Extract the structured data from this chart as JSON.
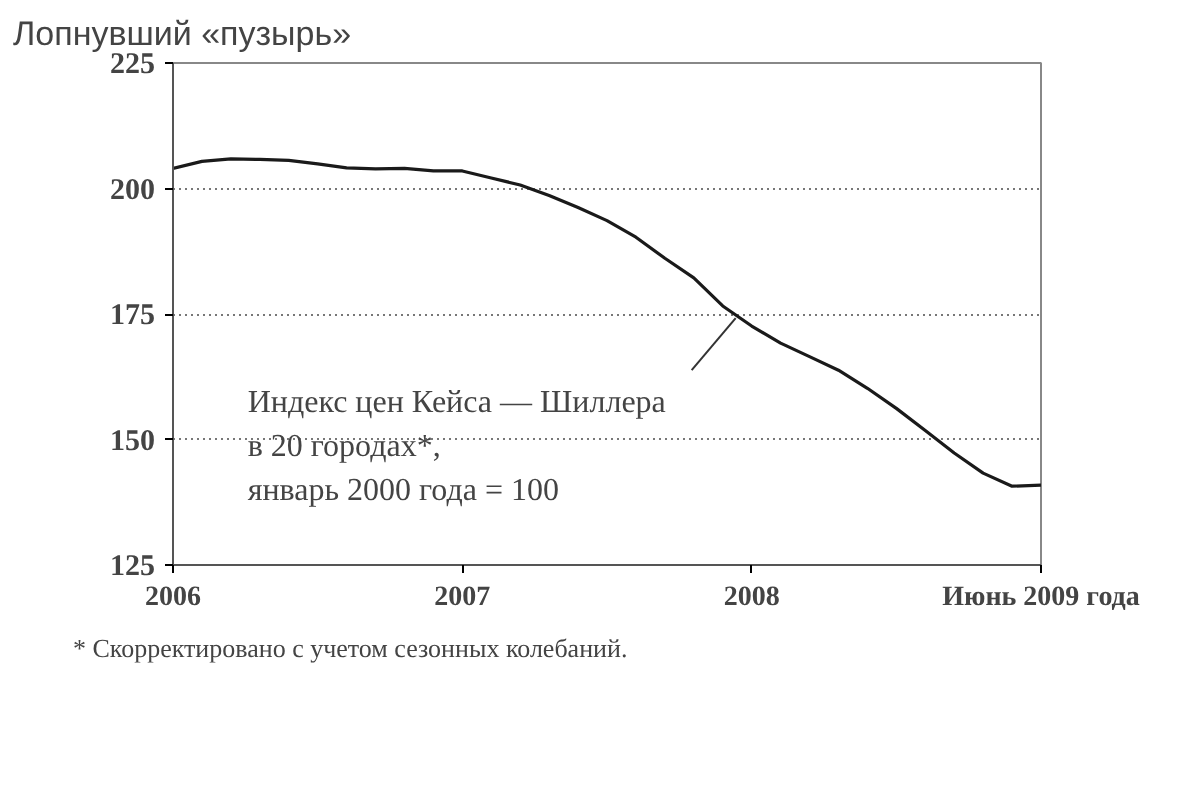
{
  "chart_data": {
    "type": "line",
    "title": "Лопнувший «пузырь»",
    "categories": [
      "2006",
      null,
      null,
      null,
      null,
      null,
      null,
      null,
      null,
      null,
      "2007",
      null,
      null,
      null,
      null,
      null,
      null,
      null,
      null,
      null,
      "2008",
      null,
      null,
      null,
      null,
      null,
      null,
      null,
      null,
      null,
      "Июнь 2009 года"
    ],
    "series": [
      {
        "color": "#1a1a1a",
        "values": [
          204.0,
          205.4,
          205.9,
          205.8,
          205.6,
          204.9,
          204.1,
          203.9,
          204.0,
          203.5,
          203.5,
          202.1,
          200.7,
          198.6,
          196.2,
          193.6,
          190.3,
          186.1,
          182.2,
          176.6,
          172.6,
          169.2,
          166.5,
          163.8,
          160.2,
          156.2,
          151.8,
          147.3,
          143.3,
          140.7,
          140.9
        ]
      }
    ],
    "ylim": [
      125,
      225
    ],
    "yticks": [
      125,
      150,
      175,
      200,
      225
    ],
    "grid": "y",
    "marker": "none",
    "line_style": "solid",
    "annotations": [
      {
        "text": "Индекс цен Кейса — Шиллера\nв 20 городах*,\nянварь 2000 года = 100",
        "x": "2008",
        "y": 172.6
      },
      "* Скорректировано с учетом сезонных колебаний."
    ]
  }
}
